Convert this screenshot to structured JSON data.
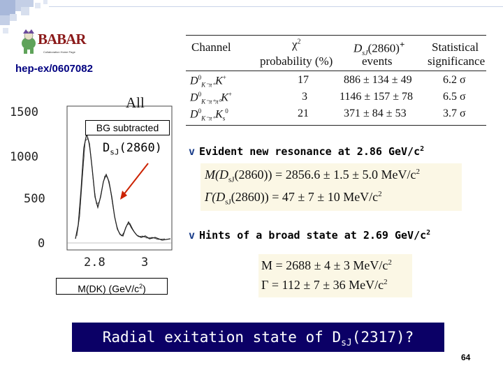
{
  "logo": {
    "text": "BABAR",
    "subtitle": "Collaboration Home Page"
  },
  "reference": "hep-ex/0607082",
  "plot": {
    "panel_title": "All",
    "y_ticks": [
      "1500",
      "1000",
      "500",
      "0"
    ],
    "x_ticks": [
      "2.8",
      "3"
    ],
    "bg_label": "BG subtracted",
    "peak_label_main": "D",
    "peak_label_sub": "sJ",
    "peak_label_tail": "(2860)",
    "x_axis_label_main": "M(DK) (GeV/c",
    "x_axis_label_sup": "2",
    "x_axis_label_tail": ")"
  },
  "table": {
    "headers": {
      "channel": "Channel",
      "chi2": "χ",
      "chi2_sup": "2",
      "prob": "probability (%)",
      "yield_top": "D",
      "yield_top_sub": "sJ",
      "yield_top_tail": "(2860)",
      "yield_plus": "+",
      "yield_bottom": "events",
      "sig_top": "Statistical",
      "sig_bottom": "significance"
    },
    "rows": [
      {
        "channel": "D",
        "decay": "K⁻π⁺",
        "tail": "K",
        "prob": "17",
        "events": "886 ± 134 ± 49",
        "sig": "6.2 σ"
      },
      {
        "channel": "D",
        "decay": "K⁻π⁺π⁰",
        "tail": "K",
        "prob": "3",
        "events": "1146 ± 157 ± 78",
        "sig": "6.5 σ"
      },
      {
        "channel": "D",
        "decay": "K⁻π⁺",
        "tail": "K",
        "prob": "21",
        "events": "371 ± 84 ± 53",
        "sig": "3.7 σ"
      }
    ]
  },
  "bullets": {
    "first_text": "Evident new resonance at 2.86 GeV/c",
    "first_sup": "2",
    "second_text": "Hints of a broad state at 2.69 GeV/c",
    "second_sup": "2",
    "symbol": "v"
  },
  "eq1": {
    "mass": "M(D",
    "mass_sub": "sJ",
    "mass_rest": "(2860)) = 2856.6 ± 1.5 ± 5.0 MeV/c",
    "mass_sup": "2",
    "width": "Γ(D",
    "width_sub": "sJ",
    "width_rest": "(2860)) = 47 ± 7 ± 10 MeV/c",
    "width_sup": "2"
  },
  "eq2": {
    "mass": "M = 2688 ± 4 ± 3 MeV/c",
    "mass_sup": "2",
    "width": "Γ = 112 ± 7 ± 36 MeV/c",
    "width_sup": "2"
  },
  "banner": {
    "text_main": "Radial exitation state of D",
    "text_sub": "sJ",
    "text_tail": "(2317)?"
  },
  "page_number": "64",
  "colors": {
    "banner_bg": "#0b0066",
    "banner_text": "#ffffff",
    "eq_bg": "#fbf7e5",
    "reference": "#000080",
    "bullet": "#1a3d8a",
    "arrow": "#cc2200"
  }
}
